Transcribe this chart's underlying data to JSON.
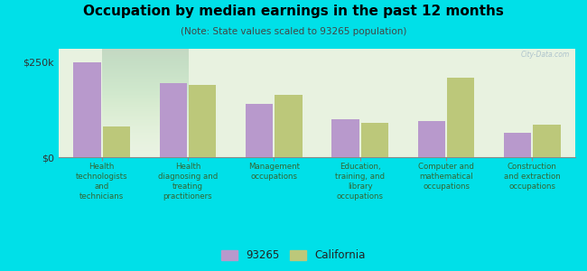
{
  "title": "Occupation by median earnings in the past 12 months",
  "subtitle": "(Note: State values scaled to 93265 population)",
  "categories": [
    "Health\ntechnologists\nand\ntechnicians",
    "Health\ndiagnosing and\ntreating\npractitioners",
    "Management\noccupations",
    "Education,\ntraining, and\nlibrary\noccupations",
    "Computer and\nmathematical\noccupations",
    "Construction\nand extraction\noccupations"
  ],
  "values_93265": [
    250000,
    195000,
    140000,
    100000,
    95000,
    65000
  ],
  "values_california": [
    80000,
    190000,
    165000,
    90000,
    210000,
    85000
  ],
  "color_93265": "#b899cc",
  "color_california": "#bcc87a",
  "yticks": [
    0,
    250000
  ],
  "ytick_labels": [
    "$0",
    "$250k"
  ],
  "ylim": [
    0,
    285000
  ],
  "plot_bg_top": "#e8f2e0",
  "plot_bg_bottom": "#f5f8f0",
  "outer_background": "#00e0e8",
  "legend_label_93265": "93265",
  "legend_label_california": "California",
  "watermark": "City-Data.com"
}
